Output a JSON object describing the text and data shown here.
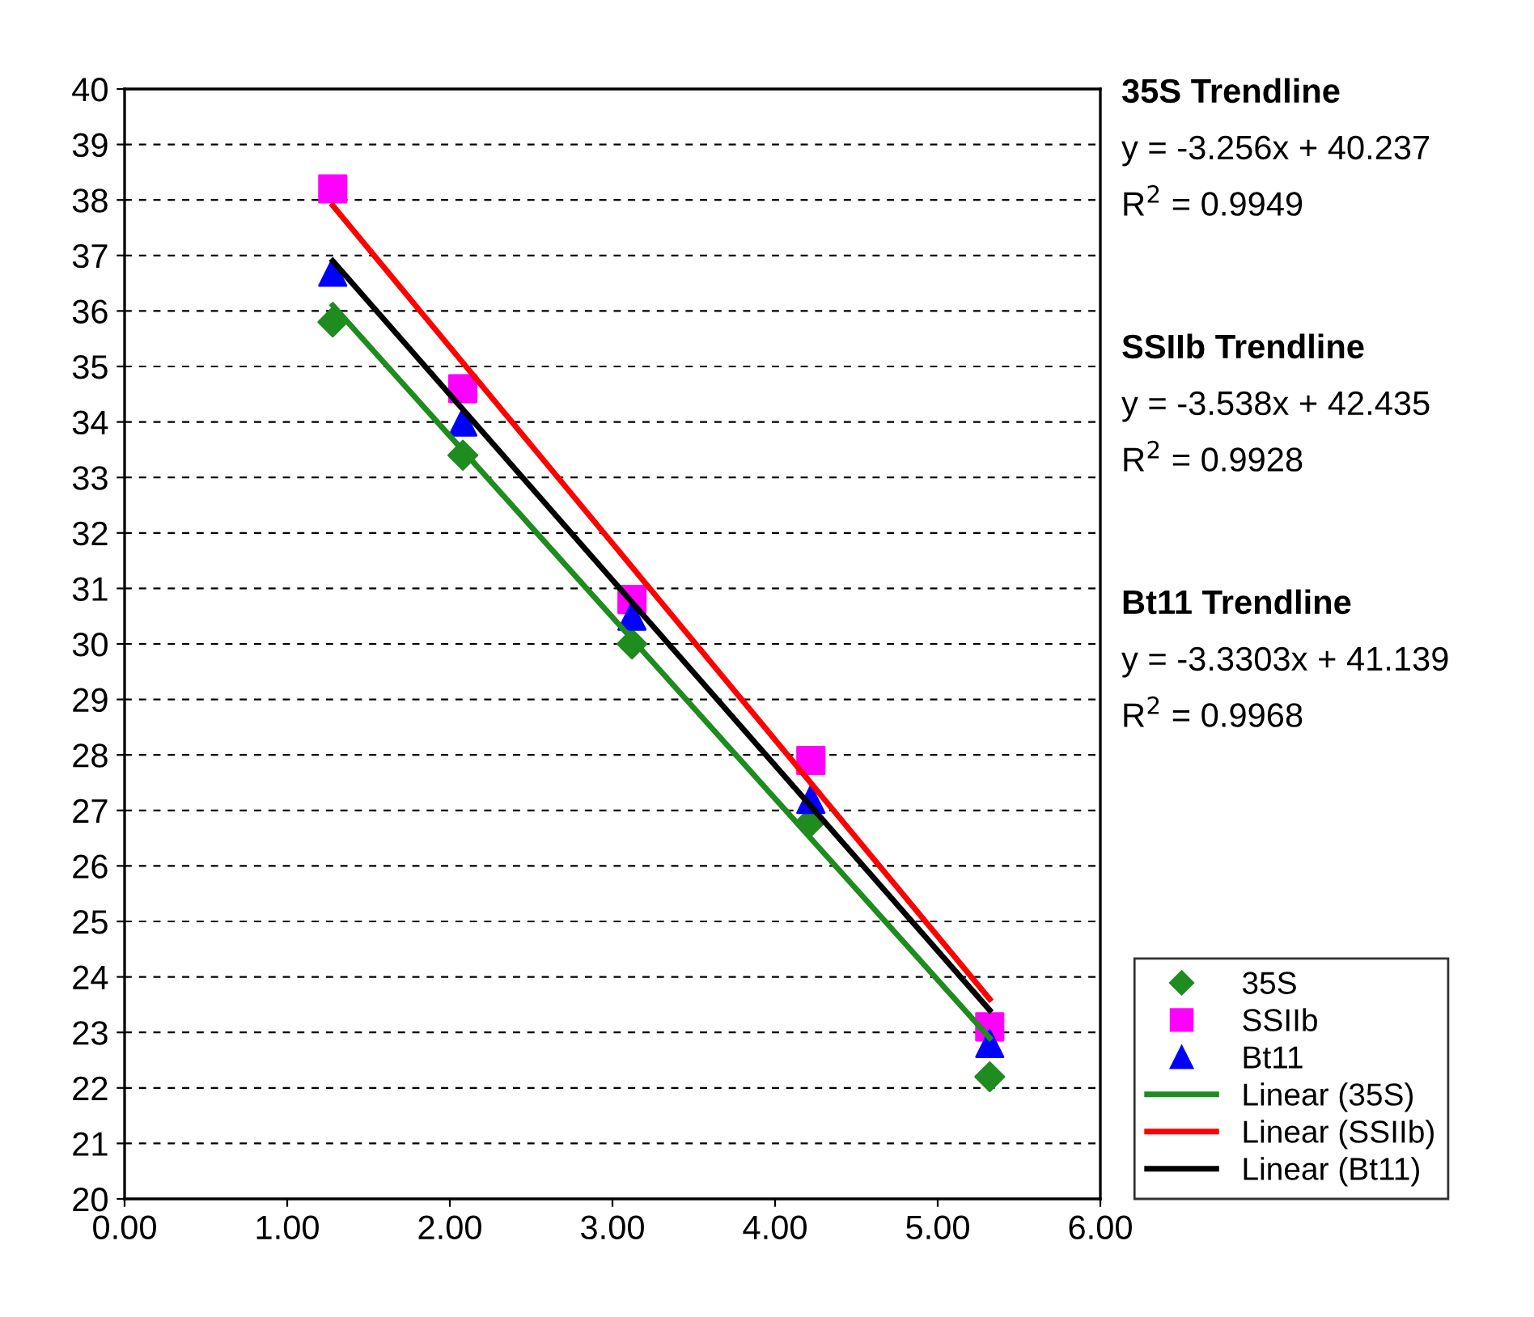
{
  "chart_data": {
    "type": "scatter",
    "xlim": [
      0,
      6
    ],
    "ylim": [
      20,
      40
    ],
    "xticks": [
      {
        "value": 0,
        "label": "0.00"
      },
      {
        "value": 1,
        "label": "1.00"
      },
      {
        "value": 2,
        "label": "2.00"
      },
      {
        "value": 3,
        "label": "3.00"
      },
      {
        "value": 4,
        "label": "4.00"
      },
      {
        "value": 5,
        "label": "5.00"
      },
      {
        "value": 6,
        "label": "6.00"
      }
    ],
    "yticks": [
      20,
      21,
      22,
      23,
      24,
      25,
      26,
      27,
      28,
      29,
      30,
      31,
      32,
      33,
      34,
      35,
      36,
      37,
      38,
      39,
      40
    ],
    "grid": "y",
    "legend": "right",
    "series": [
      {
        "name": "35S",
        "marker": "diamond",
        "color": "#1e8c1e",
        "x": [
          1.28,
          2.08,
          3.12,
          4.22,
          5.32
        ],
        "values": [
          35.8,
          33.4,
          30.0,
          26.8,
          22.2
        ]
      },
      {
        "name": "SSIIb",
        "marker": "square",
        "color": "#ff00ff",
        "x": [
          1.28,
          2.08,
          3.12,
          4.22,
          5.32
        ],
        "values": [
          38.2,
          34.6,
          30.8,
          27.9,
          23.1
        ]
      },
      {
        "name": "Bt11",
        "marker": "triangle",
        "color": "#0000ff",
        "x": [
          1.28,
          2.08,
          3.12,
          4.22,
          5.32
        ],
        "values": [
          36.7,
          34.0,
          30.5,
          27.2,
          22.8
        ]
      },
      {
        "name": "Linear (35S)",
        "type": "line",
        "marker": "none",
        "color": "#1e8c1e",
        "x": [
          1.28,
          5.32
        ],
        "values": [
          36.1,
          22.9
        ]
      },
      {
        "name": "Linear (SSIIb)",
        "type": "line",
        "marker": "none",
        "color": "#ff0000",
        "x": [
          1.28,
          5.32
        ],
        "values": [
          37.9,
          23.6
        ]
      },
      {
        "name": "Linear (Bt11)",
        "type": "line",
        "marker": "none",
        "color": "#000000",
        "x": [
          1.28,
          5.32
        ],
        "values": [
          36.9,
          23.4
        ]
      }
    ],
    "annotations": [
      "35S Trendline",
      "y = -3.256x + 40.237",
      "R$^{2}$ = 0.9949",
      "SSIIb Trendline",
      "y = -3.538x + 42.435",
      "R$^{2}$ = 0.9928",
      "Bt11 Trendline",
      "y = -3.3303x + 41.139",
      "R$^{2}$ = 0.9968"
    ]
  }
}
